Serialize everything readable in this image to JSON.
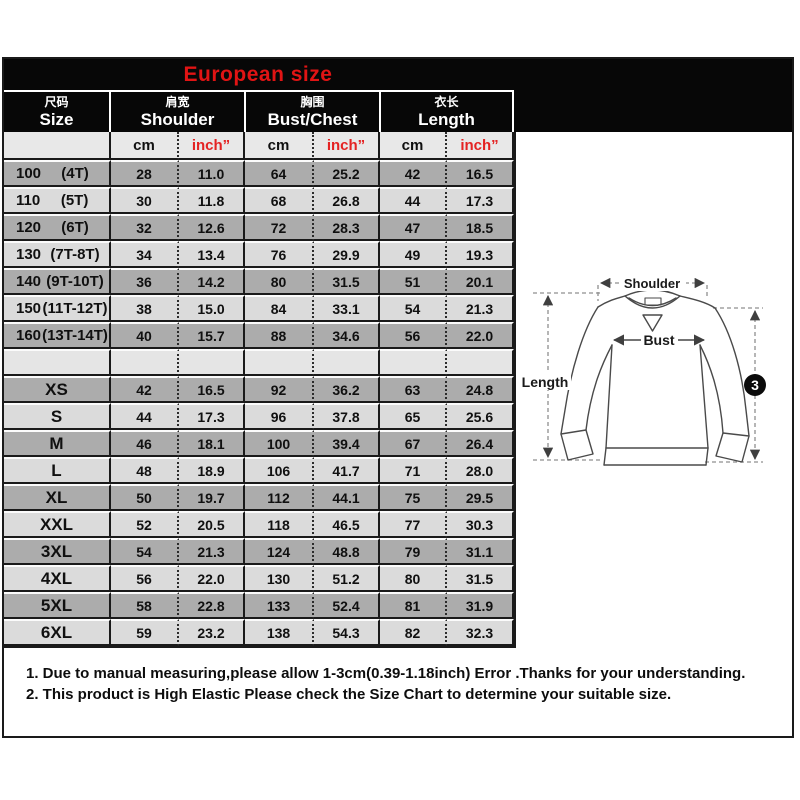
{
  "title": "European size",
  "colors": {
    "title_red": "#e11414",
    "value_red": "#e42222",
    "banner_black": "#070707",
    "row_dark": "#acacac",
    "row_light": "#dbdbdb",
    "subheader_bg": "#e8e8e8"
  },
  "columns": [
    {
      "zh": "尺码",
      "en": "Size"
    },
    {
      "zh": "肩宽",
      "en": "Shoulder"
    },
    {
      "zh": "胸围",
      "en": "Bust/Chest"
    },
    {
      "zh": "衣长",
      "en": "Length"
    }
  ],
  "subheader": {
    "cm": "cm",
    "inch": "inch”"
  },
  "table": {
    "rows": [
      {
        "size": "100",
        "tag": "(4T)",
        "shade": "dark",
        "values": [
          "28",
          "11.0",
          "64",
          "25.2",
          "42",
          "16.5"
        ]
      },
      {
        "size": "110",
        "tag": "(5T)",
        "shade": "light",
        "values": [
          "30",
          "11.8",
          "68",
          "26.8",
          "44",
          "17.3"
        ]
      },
      {
        "size": "120",
        "tag": "(6T)",
        "shade": "dark",
        "values": [
          "32",
          "12.6",
          "72",
          "28.3",
          "47",
          "18.5"
        ]
      },
      {
        "size": "130",
        "tag": "(7T-8T)",
        "shade": "light",
        "values": [
          "34",
          "13.4",
          "76",
          "29.9",
          "49",
          "19.3"
        ]
      },
      {
        "size": "140",
        "tag": "(9T-10T)",
        "shade": "dark",
        "values": [
          "36",
          "14.2",
          "80",
          "31.5",
          "51",
          "20.1"
        ]
      },
      {
        "size": "150",
        "tag": "(11T-12T)",
        "shade": "light",
        "values": [
          "38",
          "15.0",
          "84",
          "33.1",
          "54",
          "21.3"
        ]
      },
      {
        "size": "160",
        "tag": "(13T-14T)",
        "shade": "dark",
        "values": [
          "40",
          "15.7",
          "88",
          "34.6",
          "56",
          "22.0"
        ]
      },
      {
        "size": "",
        "tag": "",
        "shade": "spacer",
        "values": [
          "",
          "",
          "",
          "",
          "",
          ""
        ]
      },
      {
        "size": "XS",
        "tag": "",
        "shade": "dark",
        "values": [
          "42",
          "16.5",
          "92",
          "36.2",
          "63",
          "24.8"
        ]
      },
      {
        "size": "S",
        "tag": "",
        "shade": "light",
        "values": [
          "44",
          "17.3",
          "96",
          "37.8",
          "65",
          "25.6"
        ]
      },
      {
        "size": "M",
        "tag": "",
        "shade": "dark",
        "values": [
          "46",
          "18.1",
          "100",
          "39.4",
          "67",
          "26.4"
        ]
      },
      {
        "size": "L",
        "tag": "",
        "shade": "light",
        "values": [
          "48",
          "18.9",
          "106",
          "41.7",
          "71",
          "28.0"
        ]
      },
      {
        "size": "XL",
        "tag": "",
        "shade": "dark",
        "values": [
          "50",
          "19.7",
          "112",
          "44.1",
          "75",
          "29.5"
        ]
      },
      {
        "size": "XXL",
        "tag": "",
        "shade": "light",
        "values": [
          "52",
          "20.5",
          "118",
          "46.5",
          "77",
          "30.3"
        ]
      },
      {
        "size": "3XL",
        "tag": "",
        "shade": "dark",
        "values": [
          "54",
          "21.3",
          "124",
          "48.8",
          "79",
          "31.1"
        ]
      },
      {
        "size": "4XL",
        "tag": "",
        "shade": "light",
        "values": [
          "56",
          "22.0",
          "130",
          "51.2",
          "80",
          "31.5"
        ]
      },
      {
        "size": "5XL",
        "tag": "",
        "shade": "dark",
        "values": [
          "58",
          "22.8",
          "133",
          "52.4",
          "81",
          "31.9"
        ]
      },
      {
        "size": "6XL",
        "tag": "",
        "shade": "light",
        "values": [
          "59",
          "23.2",
          "138",
          "54.3",
          "82",
          "32.3"
        ]
      }
    ]
  },
  "diagram": {
    "shoulder_label": "Shoulder",
    "bust_label": "Bust",
    "length_label": "Length",
    "badge": "3"
  },
  "notes": [
    "1. Due to manual measuring,please allow 1-3cm(0.39-1.18inch) Error .Thanks for your understanding.",
    "2. This product is High Elastic Please check the Size Chart to determine your suitable size."
  ]
}
